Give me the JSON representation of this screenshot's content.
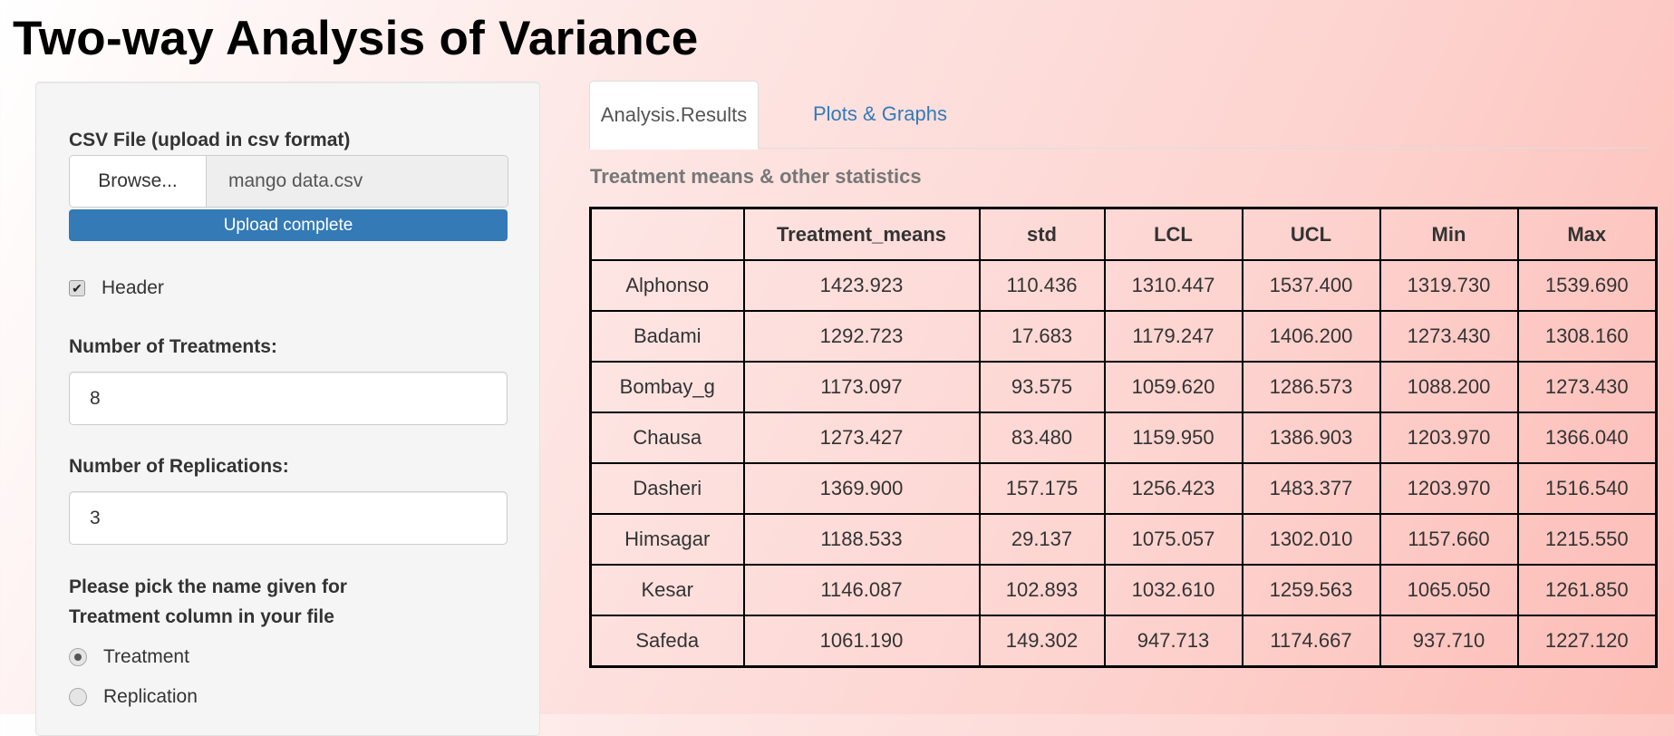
{
  "app": {
    "title": "Two-way Analysis of Variance"
  },
  "sidebar": {
    "file_label": "CSV File (upload in csv format)",
    "browse_label": "Browse...",
    "file_name": "mango data.csv",
    "upload_status": "Upload complete",
    "upload_progress": 100,
    "header_label": "Header",
    "header_checked": true,
    "treatments_label": "Number of Treatments:",
    "treatments_value": "8",
    "replications_label": "Number of Replications:",
    "replications_value": "3",
    "pick_label_line1": "Please pick the name given for",
    "pick_label_line2": "Treatment column in your file",
    "radio_options": [
      {
        "label": "Treatment",
        "selected": true
      },
      {
        "label": "Replication",
        "selected": false
      }
    ]
  },
  "main": {
    "tabs": [
      {
        "label": "Analysis.Results",
        "active": true
      },
      {
        "label": "Plots & Graphs",
        "active": false
      }
    ],
    "subtitle": "Treatment means & other statistics",
    "table": {
      "headers": [
        "",
        "Treatment_means",
        "std",
        "LCL",
        "UCL",
        "Min",
        "Max"
      ],
      "rows": [
        [
          "Alphonso",
          "1423.923",
          "110.436",
          "1310.447",
          "1537.400",
          "1319.730",
          "1539.690"
        ],
        [
          "Badami",
          "1292.723",
          "17.683",
          "1179.247",
          "1406.200",
          "1273.430",
          "1308.160"
        ],
        [
          "Bombay_g",
          "1173.097",
          "93.575",
          "1059.620",
          "1286.573",
          "1088.200",
          "1273.430"
        ],
        [
          "Chausa",
          "1273.427",
          "83.480",
          "1159.950",
          "1386.903",
          "1203.970",
          "1366.040"
        ],
        [
          "Dasheri",
          "1369.900",
          "157.175",
          "1256.423",
          "1483.377",
          "1203.970",
          "1516.540"
        ],
        [
          "Himsagar",
          "1188.533",
          "29.137",
          "1075.057",
          "1302.010",
          "1157.660",
          "1215.550"
        ],
        [
          "Kesar",
          "1146.087",
          "102.893",
          "1032.610",
          "1259.563",
          "1065.050",
          "1261.850"
        ],
        [
          "Safeda",
          "1061.190",
          "149.302",
          "947.713",
          "1174.667",
          "937.710",
          "1227.120"
        ]
      ]
    }
  },
  "colors": {
    "accent": "#337ab7",
    "background_end": "#fdbcb6"
  }
}
